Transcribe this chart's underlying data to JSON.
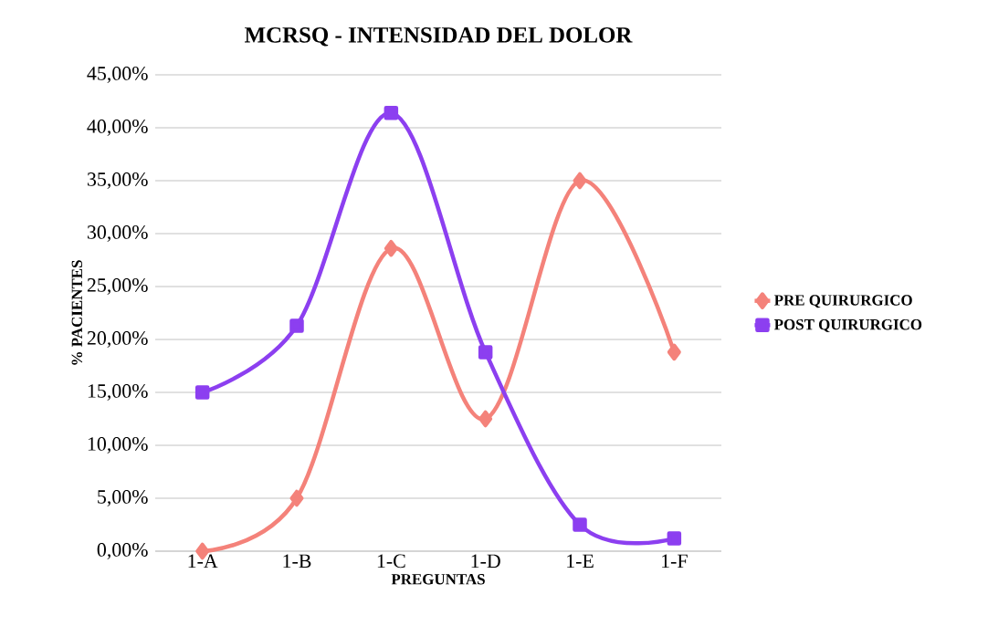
{
  "chart_data": {
    "type": "line",
    "title": "MCRSQ - INTENSIDAD DEL DOLOR",
    "xlabel": "PREGUNTAS",
    "ylabel": "% PACIENTES",
    "categories": [
      "1-A",
      "1-B",
      "1-C",
      "1-D",
      "1-E",
      "1-F"
    ],
    "series": [
      {
        "name": "PRE QUIRURGICO",
        "color": "#f4827a",
        "marker": "diamond",
        "values": [
          0,
          5,
          28.6,
          12.5,
          35,
          18.8
        ]
      },
      {
        "name": "POST QUIRURGICO",
        "color": "#8c3ff0",
        "marker": "square",
        "values": [
          15,
          21.3,
          41.4,
          18.8,
          2.5,
          1.2
        ]
      }
    ],
    "ylim": [
      0,
      45
    ],
    "yticks": [
      {
        "value": 0,
        "label": "0,00%"
      },
      {
        "value": 5,
        "label": "5,00%"
      },
      {
        "value": 10,
        "label": "10,00%"
      },
      {
        "value": 15,
        "label": "15,00%"
      },
      {
        "value": 20,
        "label": "20,00%"
      },
      {
        "value": 25,
        "label": "25,00%"
      },
      {
        "value": 30,
        "label": "30,00%"
      },
      {
        "value": 35,
        "label": "35,00%"
      },
      {
        "value": 40,
        "label": "40,00%"
      },
      {
        "value": 45,
        "label": "45,00%"
      }
    ],
    "grid": "y",
    "legend": "right",
    "line_style": "solid"
  }
}
